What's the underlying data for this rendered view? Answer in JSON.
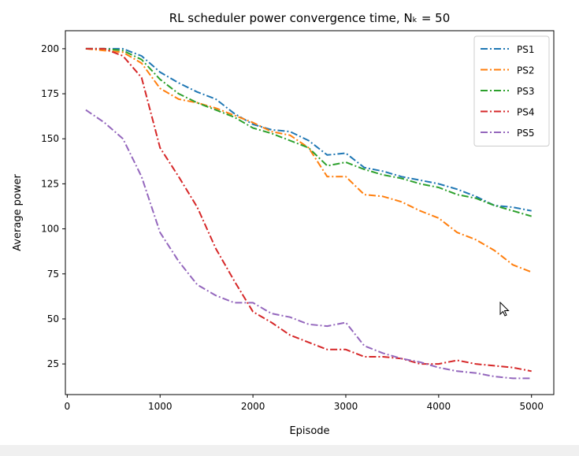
{
  "chart_data": {
    "type": "line",
    "title": "RL scheduler power convergence time, Nₖ = 50",
    "xlabel": "Episode",
    "ylabel": "Average power",
    "xlim": [
      -20,
      5240
    ],
    "ylim": [
      8,
      210
    ],
    "xticks": [
      0,
      1000,
      2000,
      3000,
      4000,
      5000
    ],
    "yticks": [
      25,
      50,
      75,
      100,
      125,
      150,
      175,
      200
    ],
    "legend_position": "top-right",
    "line_style": "dash-dot",
    "x": [
      200,
      400,
      600,
      800,
      1000,
      1200,
      1400,
      1600,
      1800,
      2000,
      2200,
      2400,
      2600,
      2800,
      3000,
      3200,
      3400,
      3600,
      3800,
      4000,
      4200,
      4400,
      4600,
      4800,
      5000
    ],
    "series": [
      {
        "name": "PS1",
        "color": "#1f77b4",
        "values": [
          200,
          200,
          200,
          196,
          187,
          181,
          176,
          172,
          164,
          158,
          155,
          154,
          149,
          141,
          142,
          134,
          132,
          129,
          127,
          125,
          122,
          118,
          113,
          112,
          110
        ]
      },
      {
        "name": "PS2",
        "color": "#ff7f0e",
        "values": [
          200,
          199,
          198,
          192,
          178,
          172,
          170,
          167,
          163,
          159,
          154,
          152,
          145,
          129,
          129,
          119,
          118,
          115,
          110,
          106,
          98,
          94,
          88,
          80,
          76
        ]
      },
      {
        "name": "PS3",
        "color": "#2ca02c",
        "values": [
          200,
          200,
          199,
          194,
          183,
          175,
          170,
          166,
          162,
          156,
          153,
          149,
          145,
          135,
          137,
          133,
          130,
          128,
          125,
          123,
          119,
          117,
          113,
          110,
          107
        ]
      },
      {
        "name": "PS4",
        "color": "#d62728",
        "values": [
          200,
          200,
          196,
          184,
          145,
          129,
          112,
          89,
          71,
          54,
          48,
          41,
          37,
          33,
          33,
          29,
          29,
          28,
          25,
          25,
          27,
          25,
          24,
          23,
          21
        ]
      },
      {
        "name": "PS5",
        "color": "#9467bd",
        "values": [
          166,
          159,
          150,
          129,
          98,
          82,
          69,
          63,
          59,
          59,
          53,
          51,
          47,
          46,
          48,
          35,
          31,
          28,
          26,
          23,
          21,
          20,
          18,
          17,
          17
        ]
      }
    ]
  }
}
